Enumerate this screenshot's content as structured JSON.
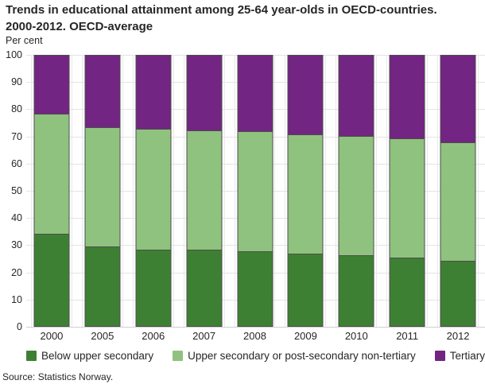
{
  "header": {
    "title_line1": "Trends in educational attainment among 25-64 year-olds in OECD-countries.",
    "title_line2": "2000-2012. OECD-average"
  },
  "chart_data": {
    "type": "bar",
    "stacked": true,
    "title": "Trends in educational attainment among 25-64 year-olds in OECD-countries. 2000-2012. OECD-average",
    "ylabel": "Per cent",
    "xlabel": "",
    "categories": [
      "2000",
      "2005",
      "2006",
      "2007",
      "2008",
      "2009",
      "2010",
      "2011",
      "2012"
    ],
    "series": [
      {
        "name": "Below upper secondary",
        "color": "#3e8033",
        "values": [
          34,
          29.3,
          28.2,
          28,
          27.5,
          26.5,
          26,
          25.2,
          24
        ]
      },
      {
        "name": "Upper secondary or post-secondary non-tertiary",
        "color": "#8fc27e",
        "values": [
          44,
          43.7,
          44.2,
          44,
          44,
          44,
          44,
          43.8,
          43.6
        ]
      },
      {
        "name": "Tertiary",
        "color": "#722582",
        "values": [
          22,
          27,
          27.6,
          28,
          28.5,
          29.5,
          30,
          31,
          32.4
        ]
      }
    ],
    "ylim": [
      0,
      100
    ],
    "yticks": [
      0,
      10,
      20,
      30,
      40,
      50,
      60,
      70,
      80,
      90,
      100
    ],
    "grid": true,
    "legend_position": "bottom"
  },
  "footer": {
    "source": "Source: Statistics Norway."
  }
}
